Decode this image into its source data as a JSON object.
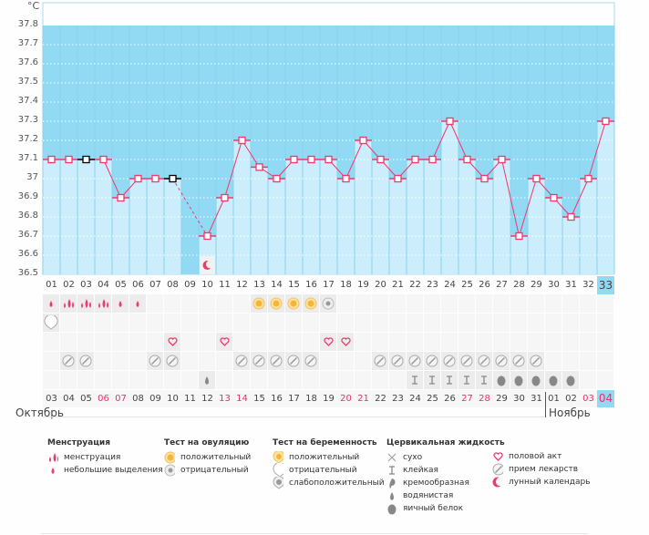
{
  "y_axis": {
    "unit": "°C",
    "ticks": [
      "37.8",
      "37.7",
      "37.6",
      "37.5",
      "37.4",
      "37.3",
      "37.2",
      "37.1",
      "37",
      "36.9",
      "36.8",
      "36.7",
      "36.6",
      "36.5"
    ]
  },
  "chart_data": {
    "type": "line",
    "title": "",
    "xlabel": "",
    "ylabel": "°C",
    "ylim": [
      36.5,
      37.8
    ],
    "grid": true,
    "cycle_days": [
      "01",
      "02",
      "03",
      "04",
      "05",
      "06",
      "07",
      "08",
      "09",
      "10",
      "11",
      "12",
      "13",
      "14",
      "15",
      "16",
      "17",
      "18",
      "19",
      "20",
      "21",
      "22",
      "23",
      "24",
      "25",
      "26",
      "27",
      "28",
      "29",
      "30",
      "31",
      "32",
      "33"
    ],
    "values": [
      37.1,
      37.1,
      37.1,
      37.1,
      36.9,
      37.0,
      37.0,
      37.0,
      null,
      36.7,
      36.9,
      37.2,
      37.06,
      37.0,
      37.1,
      37.1,
      37.1,
      37.0,
      37.2,
      37.1,
      37.0,
      37.1,
      37.1,
      37.3,
      37.1,
      37.0,
      37.1,
      36.7,
      37.0,
      36.9,
      36.8,
      37.0,
      37.3
    ],
    "excluded_days": [
      3,
      8
    ],
    "current_day": 33,
    "dates": [
      "03",
      "04",
      "05",
      "06",
      "07",
      "08",
      "09",
      "10",
      "11",
      "12",
      "13",
      "14",
      "15",
      "16",
      "17",
      "18",
      "19",
      "20",
      "21",
      "22",
      "23",
      "24",
      "25",
      "26",
      "27",
      "28",
      "29",
      "30",
      "31",
      "01",
      "02",
      "03",
      "04"
    ],
    "weekend_dates": [
      3,
      4,
      10,
      11,
      17,
      18,
      24,
      25,
      31,
      32
    ]
  },
  "months": {
    "first": "Октябрь",
    "second": "Ноябрь"
  },
  "rows": {
    "menstruation": [
      {
        "day": 1,
        "icon": "spotting"
      },
      {
        "day": 2,
        "icon": "menstruation"
      },
      {
        "day": 3,
        "icon": "menstruation"
      },
      {
        "day": 4,
        "icon": "menstruation"
      },
      {
        "day": 5,
        "icon": "spotting"
      },
      {
        "day": 6,
        "icon": "spotting"
      },
      {
        "day": 13,
        "icon": "ovulation-positive"
      },
      {
        "day": 14,
        "icon": "ovulation-positive"
      },
      {
        "day": 15,
        "icon": "ovulation-positive"
      },
      {
        "day": 16,
        "icon": "ovulation-positive"
      },
      {
        "day": 17,
        "icon": "ovulation-negative"
      }
    ],
    "pregnancy": [
      {
        "day": 1,
        "icon": "pregnancy-negative"
      }
    ],
    "intercourse": [
      {
        "day": 8,
        "icon": "heart"
      },
      {
        "day": 11,
        "icon": "heart"
      },
      {
        "day": 17,
        "icon": "heart"
      },
      {
        "day": 18,
        "icon": "heart"
      }
    ],
    "medication": [
      {
        "day": 2,
        "icon": "pill"
      },
      {
        "day": 3,
        "icon": "pill"
      },
      {
        "day": 7,
        "icon": "pill"
      },
      {
        "day": 8,
        "icon": "pill"
      },
      {
        "day": 12,
        "icon": "pill"
      },
      {
        "day": 13,
        "icon": "pill"
      },
      {
        "day": 14,
        "icon": "pill"
      },
      {
        "day": 15,
        "icon": "pill"
      },
      {
        "day": 16,
        "icon": "pill"
      },
      {
        "day": 20,
        "icon": "pill"
      },
      {
        "day": 21,
        "icon": "pill"
      },
      {
        "day": 22,
        "icon": "pill"
      },
      {
        "day": 23,
        "icon": "pill"
      },
      {
        "day": 24,
        "icon": "pill"
      },
      {
        "day": 25,
        "icon": "pill"
      },
      {
        "day": 26,
        "icon": "pill"
      },
      {
        "day": 27,
        "icon": "pill"
      },
      {
        "day": 28,
        "icon": "pill"
      },
      {
        "day": 29,
        "icon": "pill"
      }
    ],
    "cervical": [
      {
        "day": 10,
        "icon": "watery"
      },
      {
        "day": 22,
        "icon": "sticky"
      },
      {
        "day": 23,
        "icon": "sticky"
      },
      {
        "day": 24,
        "icon": "sticky"
      },
      {
        "day": 25,
        "icon": "sticky"
      },
      {
        "day": 26,
        "icon": "sticky"
      },
      {
        "day": 27,
        "icon": "egg-white"
      },
      {
        "day": 28,
        "icon": "egg-white"
      },
      {
        "day": 29,
        "icon": "egg-white"
      },
      {
        "day": 30,
        "icon": "egg-white"
      },
      {
        "day": 31,
        "icon": "egg-white"
      }
    ],
    "moon_day": 10
  },
  "legend": [
    {
      "title": "Менструация",
      "items": [
        {
          "icon": "menstruation",
          "label": "менструация"
        },
        {
          "icon": "spotting",
          "label": "небольшие выделения"
        }
      ]
    },
    {
      "title": "Тест на овуляцию",
      "items": [
        {
          "icon": "ovulation-positive",
          "label": "положительный"
        },
        {
          "icon": "ovulation-negative",
          "label": "отрицательный"
        }
      ]
    },
    {
      "title": "Тест на беременность",
      "items": [
        {
          "icon": "pregnancy-positive",
          "label": "положительный"
        },
        {
          "icon": "pregnancy-negative",
          "label": "отрицательный"
        },
        {
          "icon": "pregnancy-weak",
          "label": "слабоположительный"
        }
      ]
    },
    {
      "title": "Цервикальная жидкость",
      "items": [
        {
          "icon": "dry",
          "label": "сухо"
        },
        {
          "icon": "sticky",
          "label": "клейкая"
        },
        {
          "icon": "creamy",
          "label": "кремообразная"
        },
        {
          "icon": "watery",
          "label": "водянистая"
        },
        {
          "icon": "egg-white",
          "label": "яичный белок"
        }
      ]
    },
    {
      "title": "",
      "items": [
        {
          "icon": "heart",
          "label": "половой акт"
        },
        {
          "icon": "pill",
          "label": "прием лекарств"
        },
        {
          "icon": "moon",
          "label": "лунный календарь"
        }
      ]
    }
  ],
  "colors": {
    "band": "#92d9f3",
    "bar": "#ccedfb",
    "line": "#f0386b",
    "weekend": "#ee2f6a"
  }
}
